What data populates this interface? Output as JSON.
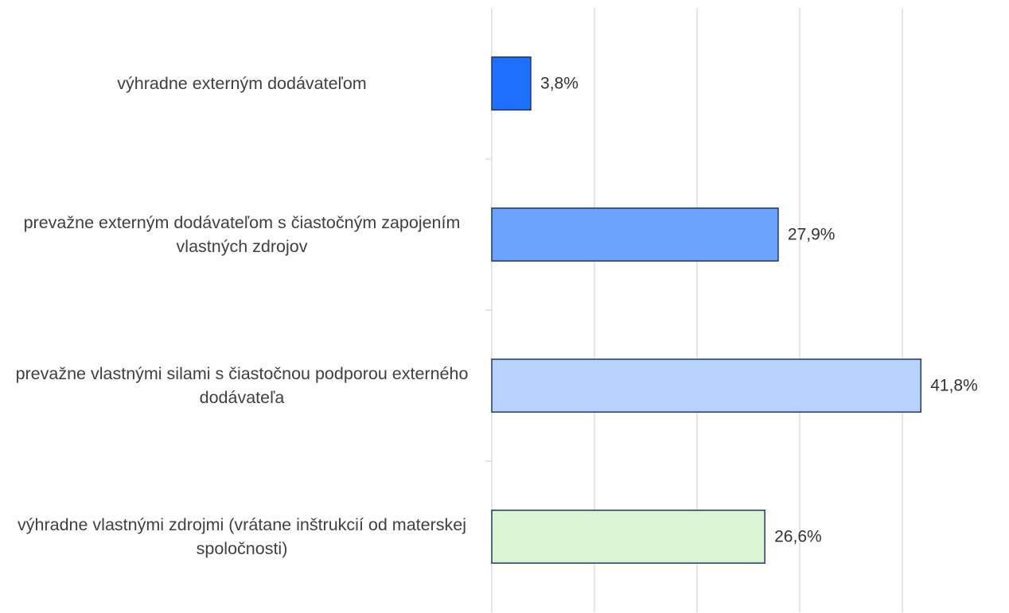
{
  "chart_data": {
    "type": "barh",
    "categories": [
      "výhradne externým dodávateľom",
      "prevažne externým dodávateľom s čiastočným zapojením vlastných zdrojov",
      "prevažne vlastnými silami s čiastočnou podporou externého dodávateľa",
      "výhradne vlastnými zdrojmi (vrátane inštrukcií od materskej spoločnosti)"
    ],
    "values": [
      3.8,
      27.9,
      41.8,
      26.6
    ],
    "value_labels": [
      "3,8%",
      "27,9%",
      "41,8%",
      "26,6%"
    ],
    "colors": [
      "#1f6fff",
      "#6ca3ff",
      "#b8d1fd",
      "#d9f5d3"
    ],
    "xlim": [
      0,
      50
    ],
    "xticks": [
      0,
      10,
      20,
      30,
      40
    ],
    "grid": true
  }
}
